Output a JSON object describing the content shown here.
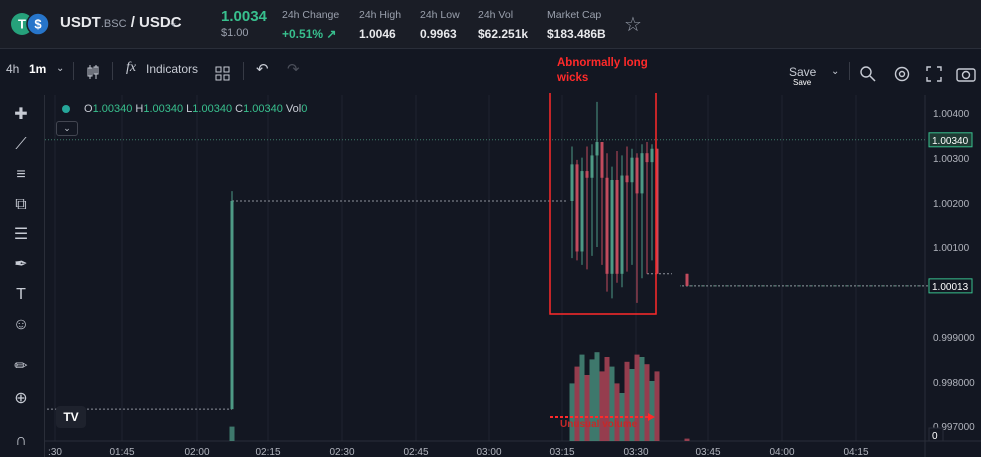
{
  "header": {
    "base": "USDT",
    "network": ".BSC",
    "separator": "/",
    "quote": "USDC",
    "price": "1.0034",
    "price_usd": "$1.00",
    "stats": [
      {
        "label": "24h Change",
        "value": "+0.51%",
        "arrow": "↗"
      },
      {
        "label": "24h High",
        "value": "1.0046"
      },
      {
        "label": "24h Low",
        "value": "0.9963"
      },
      {
        "label": "24h Vol",
        "value": "$62.251k"
      },
      {
        "label": "Market Cap",
        "value": "$183.486B"
      }
    ]
  },
  "toolbar": {
    "interval_4h": "4h",
    "interval_1m": "1m",
    "indicators": "Indicators",
    "save": "Save",
    "save_sub": "Save"
  },
  "ohlc": {
    "o_label": "O",
    "o": "1.00340",
    "h_label": "H",
    "h": "1.00340",
    "l_label": "L",
    "l": "1.00340",
    "c_label": "C",
    "c": "1.00340",
    "vol_label": "Vol",
    "vol": "0"
  },
  "annotations": {
    "box_label": "Abnormally long wicks",
    "bottom_label": "Unusual volume"
  },
  "colors": {
    "up": "#4e9a85",
    "down": "#c24b5d",
    "accent": "#38c08e",
    "annotation": "#ff2a2a"
  },
  "chart_data": {
    "type": "candlestick",
    "y_ticks": [
      "1.00400",
      "1.00300",
      "1.00200",
      "1.00100",
      "0.999000",
      "0.998000",
      "0.997000"
    ],
    "x_ticks": [
      ":30",
      "01:45",
      "02:00",
      "02:15",
      "02:30",
      "02:45",
      "03:00",
      "03:15",
      "03:30",
      "03:45",
      "04:00",
      "04:15"
    ],
    "price_labels": {
      "last": "1.00340",
      "other": "1.00013",
      "volume_axis": "0"
    },
    "levels": [
      {
        "from": "01:26",
        "to": "02:07",
        "price": 0.99737
      },
      {
        "from": "02:07",
        "to": "03:14",
        "price": 1.00203
      },
      {
        "from": "03:30",
        "to": "03:35",
        "price": 1.0004
      },
      {
        "from": "03:37",
        "to": "04:34",
        "price": 1.00013
      }
    ],
    "candles": [
      {
        "t": "02:07",
        "o": 0.99737,
        "h": 1.00225,
        "l": 0.99737,
        "c": 1.00203,
        "v": 0.12
      },
      {
        "t": "03:15",
        "o": 1.00203,
        "h": 1.00325,
        "l": 1.00075,
        "c": 1.00285,
        "v": 0.48
      },
      {
        "t": "03:16",
        "o": 1.00285,
        "h": 1.00295,
        "l": 1.0007,
        "c": 1.0009,
        "v": 0.62
      },
      {
        "t": "03:17",
        "o": 1.0009,
        "h": 1.003,
        "l": 1.0006,
        "c": 1.0027,
        "v": 0.72
      },
      {
        "t": "03:18",
        "o": 1.0027,
        "h": 1.00325,
        "l": 1.0005,
        "c": 1.00255,
        "v": 0.55
      },
      {
        "t": "03:19",
        "o": 1.00255,
        "h": 1.0033,
        "l": 1.0008,
        "c": 1.00305,
        "v": 0.68
      },
      {
        "t": "03:20",
        "o": 1.00305,
        "h": 1.00425,
        "l": 1.001,
        "c": 1.00335,
        "v": 0.74
      },
      {
        "t": "03:21",
        "o": 1.00335,
        "h": 1.00335,
        "l": 1.0006,
        "c": 1.00255,
        "v": 0.58
      },
      {
        "t": "03:22",
        "o": 1.00255,
        "h": 1.0031,
        "l": 1.0,
        "c": 1.0004,
        "v": 0.7
      },
      {
        "t": "03:23",
        "o": 1.0004,
        "h": 1.0028,
        "l": 0.99985,
        "c": 1.0025,
        "v": 0.62
      },
      {
        "t": "03:24",
        "o": 1.0025,
        "h": 1.00315,
        "l": 1.0002,
        "c": 1.0004,
        "v": 0.48
      },
      {
        "t": "03:25",
        "o": 1.0004,
        "h": 1.00305,
        "l": 1.0001,
        "c": 1.0026,
        "v": 0.4
      },
      {
        "t": "03:26",
        "o": 1.0026,
        "h": 1.00325,
        "l": 1.00045,
        "c": 1.00245,
        "v": 0.66
      },
      {
        "t": "03:27",
        "o": 1.00245,
        "h": 1.0032,
        "l": 1.0006,
        "c": 1.003,
        "v": 0.6
      },
      {
        "t": "03:28",
        "o": 1.003,
        "h": 1.0031,
        "l": 0.99975,
        "c": 1.0022,
        "v": 0.72
      },
      {
        "t": "03:29",
        "o": 1.0022,
        "h": 1.0033,
        "l": 1.0003,
        "c": 1.0031,
        "v": 0.7
      },
      {
        "t": "03:30",
        "o": 1.0031,
        "h": 1.00335,
        "l": 1.0004,
        "c": 1.0029,
        "v": 0.64
      },
      {
        "t": "03:31",
        "o": 1.0029,
        "h": 1.0033,
        "l": 1.0007,
        "c": 1.0032,
        "v": 0.5
      },
      {
        "t": "03:32",
        "o": 1.0032,
        "h": 1.0032,
        "l": 1.0004,
        "c": 1.0004,
        "v": 0.58
      },
      {
        "t": "03:38",
        "o": 1.0004,
        "h": 1.0004,
        "l": 1.00013,
        "c": 1.00013,
        "v": 0.02
      }
    ]
  }
}
